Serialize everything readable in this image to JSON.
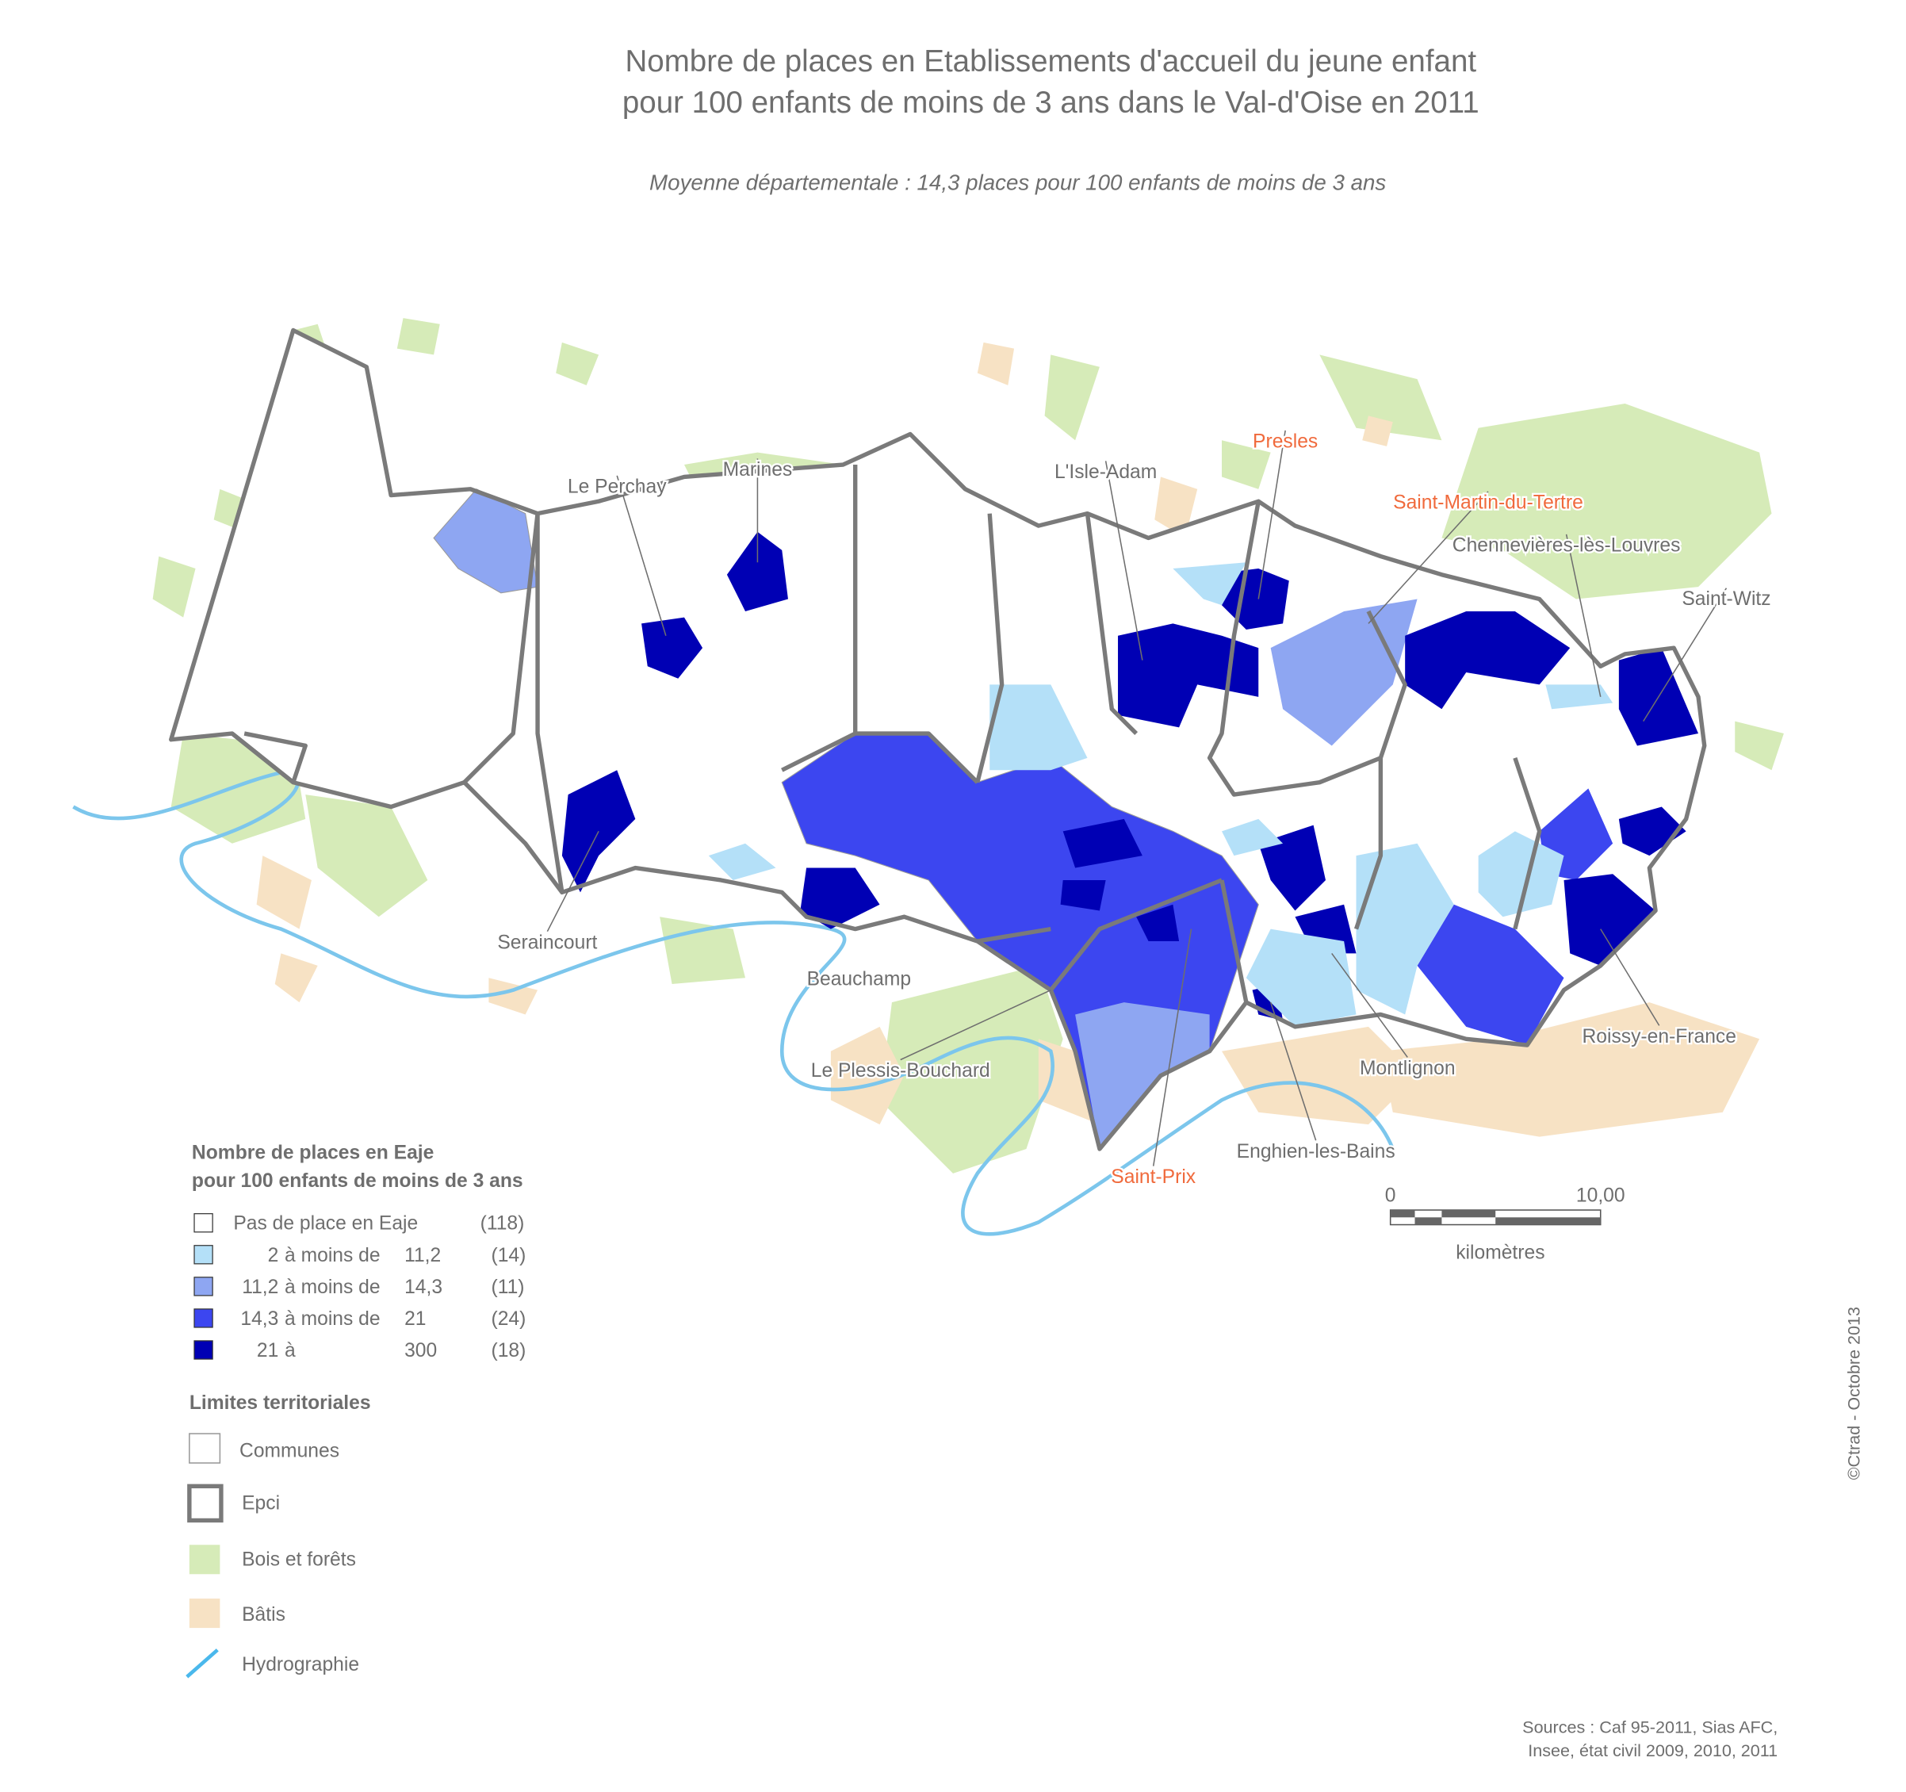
{
  "title": [
    "Nombre de places en Etablissements d'accueil du jeune enfant",
    "pour 100 enfants de moins de 3 ans dans le Val-d'Oise en 2011"
  ],
  "subtitle": "Moyenne départementale : 14,3 places pour 100 enfants de moins de 3 ans",
  "places": [
    {
      "label": "Le Perchay",
      "color": "#6e6e6e"
    },
    {
      "label": "Marines",
      "color": "#6e6e6e"
    },
    {
      "label": "L'Isle-Adam",
      "color": "#6e6e6e"
    },
    {
      "label": "Presles",
      "color": "#f06a3c"
    },
    {
      "label": "Saint-Martin-du-Tertre",
      "color": "#f06a3c"
    },
    {
      "label": "Chennevières-lès-Louvres",
      "color": "#6e6e6e"
    },
    {
      "label": "Saint-Witz",
      "color": "#6e6e6e"
    },
    {
      "label": "Seraincourt",
      "color": "#6e6e6e"
    },
    {
      "label": "Beauchamp",
      "color": "#6e6e6e"
    },
    {
      "label": "Le Plessis-Bouchard",
      "color": "#6e6e6e"
    },
    {
      "label": "Montlignon",
      "color": "#6e6e6e"
    },
    {
      "label": "Roissy-en-France",
      "color": "#6e6e6e"
    },
    {
      "label": "Enghien-les-Bains",
      "color": "#6e6e6e"
    },
    {
      "label": "Saint-Prix",
      "color": "#f06a3c"
    }
  ],
  "legend": {
    "title": [
      "Nombre de places en Eaje",
      "pour 100 enfants de moins de 3 ans"
    ],
    "rows": [
      {
        "cells": [
          "Pas de place en Eaje",
          "(118)"
        ],
        "color": "#ffffff"
      },
      {
        "cells": [
          "2",
          "à moins de",
          "11,2",
          "(14)"
        ],
        "color": "#b4e0f8"
      },
      {
        "cells": [
          "11,2",
          "à moins de",
          "14,3",
          "(11)"
        ],
        "color": "#8ea6f2"
      },
      {
        "cells": [
          "14,3",
          "à moins de",
          "21",
          "(24)"
        ],
        "color": "#3c46f0"
      },
      {
        "cells": [
          "21",
          "à",
          "300",
          "(18)"
        ],
        "color": "#0000b4"
      }
    ]
  },
  "limits": {
    "title": "Limites territoriales",
    "items": [
      "Communes",
      "Epci",
      "Bois et forêts",
      "Bâtis",
      "Hydrographie"
    ]
  },
  "scale": {
    "ticks": [
      "0",
      "10,00"
    ],
    "unit": "kilomètres"
  },
  "credit": "©Ctrad - Octobre 2013",
  "sources": [
    "Sources : Caf 95-2011, Sias AFC,",
    "Insee, état civil 2009, 2010, 2011"
  ]
}
